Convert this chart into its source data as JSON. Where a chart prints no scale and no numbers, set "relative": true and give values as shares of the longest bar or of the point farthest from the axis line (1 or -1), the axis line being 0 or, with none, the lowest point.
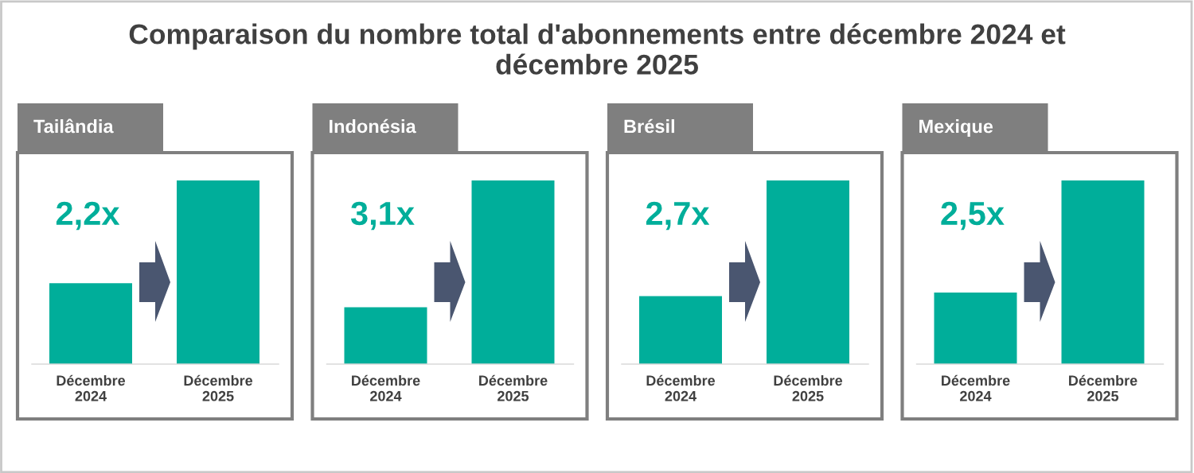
{
  "chart_data": [
    {
      "type": "bar",
      "title": "Tailândia",
      "relative": true,
      "categories": [
        "Décembre 2024",
        "Décembre 2025"
      ],
      "values": [
        0.44,
        1
      ],
      "color": "#00ae9a",
      "annotations": [
        "Comparaison du nombre total d'abonnements entre décembre 2024 et décembre 2025",
        "2,2x"
      ]
    },
    {
      "type": "bar",
      "title": "Indonésia",
      "relative": true,
      "categories": [
        "Décembre 2024",
        "Décembre 2025"
      ],
      "values": [
        0.31,
        1
      ],
      "color": "#00ae9a",
      "annotations": [
        "3,1x"
      ]
    },
    {
      "type": "bar",
      "title": "Brésil",
      "relative": true,
      "categories": [
        "Décembre 2024",
        "Décembre 2025"
      ],
      "values": [
        0.37,
        1
      ],
      "color": "#00ae9a",
      "annotations": [
        "2,7x"
      ]
    },
    {
      "type": "bar",
      "title": "Mexique",
      "relative": true,
      "categories": [
        "Décembre 2024",
        "Décembre 2025"
      ],
      "values": [
        0.39,
        1
      ],
      "color": "#00ae9a",
      "annotations": [
        "2,5x"
      ]
    }
  ]
}
